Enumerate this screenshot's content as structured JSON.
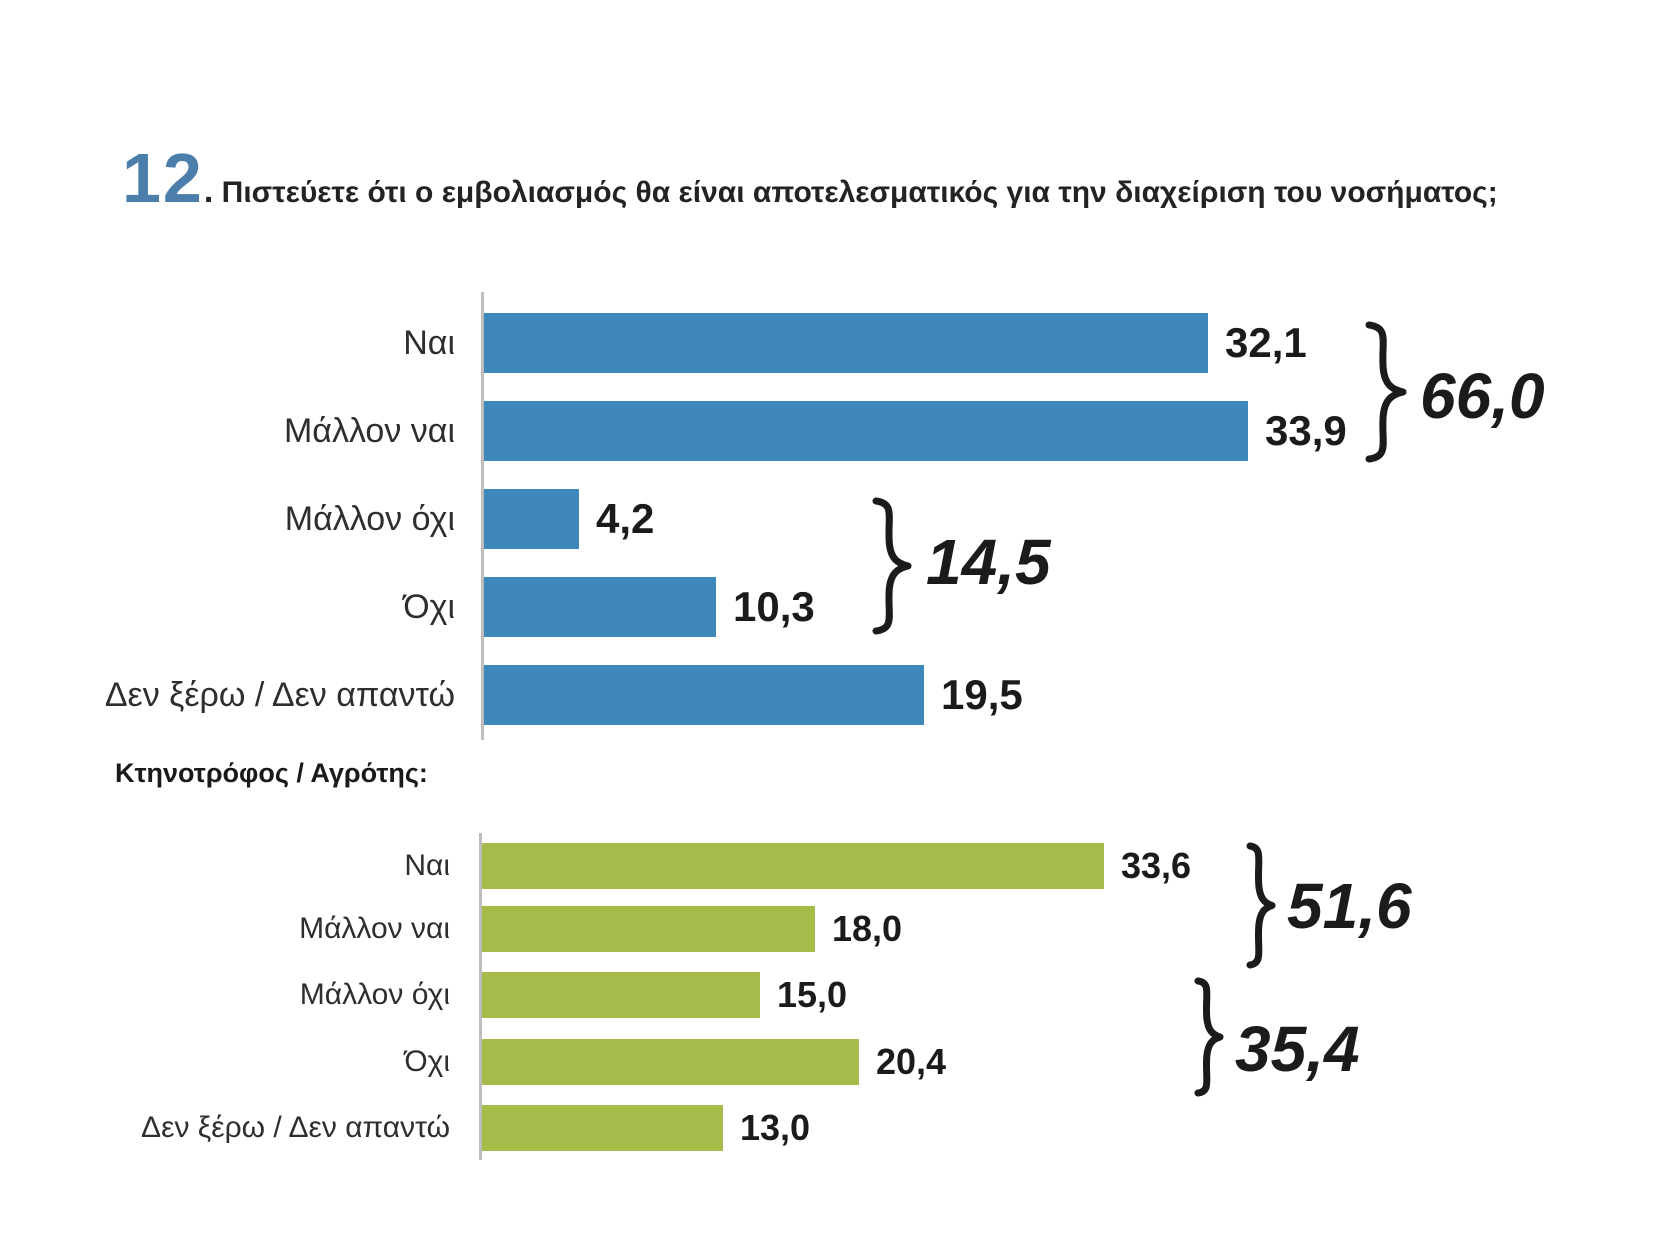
{
  "title": {
    "number": "12",
    "dot": ".",
    "text": "Πιστεύετε ότι ο εμβολιασμός θα είναι αποτελεσματικός για την διαχείριση του νοσήματος;",
    "number_color": "#4c7eac"
  },
  "section_label": "Κτηνοτρόφος / Αγρότης:",
  "colors": {
    "bar_blue": "#3e87bb",
    "bar_green": "#a5bc4b",
    "axis_line": "#bdbdbd",
    "text_dark": "#1b1b1b",
    "title_number_blue": "#4c7eac"
  },
  "chart_data": [
    {
      "type": "bar",
      "orientation": "horizontal",
      "title": "",
      "categories": [
        "Ναι",
        "Μάλλον ναι",
        "Μάλλον όχι",
        "Όχι",
        "Δεν ξέρω / Δεν απαντώ"
      ],
      "values": [
        32.1,
        33.9,
        4.2,
        10.3,
        19.5
      ],
      "value_labels": [
        "32,1",
        "33,9",
        "4,2",
        "10,3",
        "19,5"
      ],
      "bar_color": "#3e87bb",
      "xlim": [
        0,
        36
      ],
      "grid": false,
      "legend": false,
      "group_totals": [
        {
          "label": "66,0",
          "from_row": 0,
          "to_row": 1
        },
        {
          "label": "14,5",
          "from_row": 2,
          "to_row": 3
        }
      ]
    },
    {
      "type": "bar",
      "orientation": "horizontal",
      "title": "Κτηνοτρόφος / Αγρότης:",
      "categories": [
        "Ναι",
        "Μάλλον ναι",
        "Μάλλον όχι",
        "Όχι",
        "Δεν ξέρω / Δεν απαντώ"
      ],
      "values": [
        33.6,
        18.0,
        15.0,
        20.4,
        13.0
      ],
      "value_labels": [
        "33,6",
        "18,0",
        "15,0",
        "20,4",
        "13,0"
      ],
      "bar_color": "#a5bc4b",
      "xlim": [
        0,
        36
      ],
      "grid": false,
      "legend": false,
      "group_totals": [
        {
          "label": "51,6",
          "from_row": 0,
          "to_row": 1
        },
        {
          "label": "35,4",
          "from_row": 2,
          "to_row": 3
        }
      ]
    }
  ]
}
